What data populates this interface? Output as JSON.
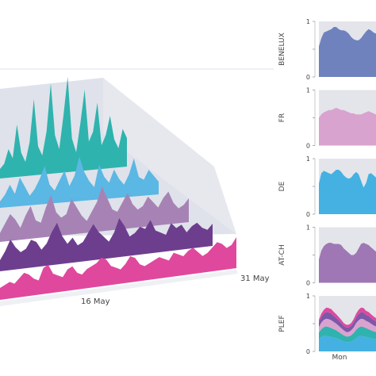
{
  "colors": {
    "BENELUX": "#6f82be",
    "FR": "#d9a3cf",
    "DE": "#45b1e2",
    "AT-CH": "#9e77b4",
    "PLEF": "#7d58a9",
    "series_3d": [
      "#e0489e",
      "#6d3e8e",
      "#a783b5",
      "#5bb7e4",
      "#2fb3ae"
    ]
  },
  "chart_data": [
    {
      "type": "area",
      "subtype": "3d-stacked-ridgeline",
      "title": "",
      "xlabel": "",
      "ylabel": "",
      "tick_labels": [
        "16 May",
        "31 May"
      ],
      "series": [
        {
          "values": [
            0.25,
            0.3,
            0.35,
            0.3,
            0.4,
            0.5,
            0.45,
            0.35,
            0.3,
            0.55,
            0.6,
            0.4,
            0.35,
            0.3,
            0.45,
            0.5,
            0.35,
            0.3,
            0.4,
            0.45,
            0.5,
            0.6,
            0.55,
            0.4,
            0.35,
            0.3,
            0.4,
            0.55,
            0.5,
            0.35,
            0.3,
            0.35,
            0.4,
            0.45,
            0.4,
            0.35,
            0.5,
            0.45,
            0.4,
            0.5,
            0.55,
            0.45,
            0.35,
            0.4,
            0.5,
            0.6,
            0.55,
            0.45,
            0.5,
            0.65
          ]
        },
        {
          "values": [
            0.2,
            0.35,
            0.55,
            0.4,
            0.3,
            0.35,
            0.5,
            0.45,
            0.3,
            0.4,
            0.6,
            0.75,
            0.5,
            0.35,
            0.45,
            0.3,
            0.35,
            0.5,
            0.65,
            0.5,
            0.4,
            0.3,
            0.45,
            0.7,
            0.55,
            0.35,
            0.4,
            0.5,
            0.45,
            0.6,
            0.4,
            0.35,
            0.3,
            0.5,
            0.4,
            0.45,
            0.3,
            0.4,
            0.45,
            0.35,
            0.3,
            0.4
          ]
        },
        {
          "values": [
            0.15,
            0.3,
            0.45,
            0.35,
            0.2,
            0.4,
            0.55,
            0.3,
            0.25,
            0.5,
            0.7,
            0.4,
            0.3,
            0.35,
            0.6,
            0.45,
            0.3,
            0.2,
            0.35,
            0.5,
            0.75,
            0.55,
            0.35,
            0.3,
            0.45,
            0.6,
            0.4,
            0.3,
            0.35,
            0.5,
            0.4,
            0.3,
            0.45,
            0.55,
            0.35,
            0.25,
            0.3,
            0.4
          ]
        },
        {
          "values": [
            0.1,
            0.2,
            0.35,
            0.2,
            0.45,
            0.3,
            0.15,
            0.25,
            0.4,
            0.6,
            0.3,
            0.2,
            0.35,
            0.5,
            0.25,
            0.4,
            0.7,
            0.45,
            0.3,
            0.2,
            0.55,
            0.35,
            0.25,
            0.45,
            0.3,
            0.2,
            0.35,
            0.6,
            0.3,
            0.25,
            0.4,
            0.3,
            0.2
          ]
        },
        {
          "values": [
            0.1,
            0.15,
            0.3,
            0.2,
            0.55,
            0.25,
            0.15,
            0.35,
            0.8,
            0.3,
            0.2,
            0.45,
            0.95,
            0.4,
            0.25,
            0.6,
            1.0,
            0.35,
            0.2,
            0.5,
            0.85,
            0.3,
            0.4,
            0.7,
            0.25,
            0.35,
            0.55,
            0.3,
            0.2,
            0.4,
            0.3
          ]
        }
      ]
    },
    {
      "type": "area",
      "title": "",
      "name": "BENELUX",
      "ylim": [
        0,
        1
      ],
      "yticks": [
        "1",
        "0.5",
        "0"
      ],
      "xlabel": "",
      "values": [
        0.55,
        0.7,
        0.8,
        0.82,
        0.84,
        0.86,
        0.9,
        0.9,
        0.86,
        0.84,
        0.84,
        0.82,
        0.78,
        0.72,
        0.68,
        0.66,
        0.66,
        0.7,
        0.76,
        0.82,
        0.86,
        0.84,
        0.8,
        0.78
      ]
    },
    {
      "type": "area",
      "title": "",
      "name": "FR",
      "ylim": [
        0,
        1
      ],
      "yticks": [
        "1",
        "0.5",
        "0"
      ],
      "xlabel": "",
      "values": [
        0.5,
        0.56,
        0.6,
        0.62,
        0.64,
        0.64,
        0.66,
        0.68,
        0.66,
        0.64,
        0.64,
        0.62,
        0.6,
        0.58,
        0.58,
        0.56,
        0.56,
        0.56,
        0.58,
        0.6,
        0.62,
        0.6,
        0.58,
        0.56
      ]
    },
    {
      "type": "area",
      "title": "",
      "name": "DE",
      "ylim": [
        0,
        1
      ],
      "yticks": [
        "1",
        "0.5",
        "0"
      ],
      "xlabel": "",
      "values": [
        0.55,
        0.74,
        0.78,
        0.76,
        0.74,
        0.72,
        0.76,
        0.8,
        0.8,
        0.76,
        0.7,
        0.66,
        0.64,
        0.66,
        0.72,
        0.76,
        0.72,
        0.6,
        0.48,
        0.56,
        0.72,
        0.74,
        0.7,
        0.66
      ]
    },
    {
      "type": "area",
      "title": "",
      "name": "AT-CH",
      "ylim": [
        0,
        1
      ],
      "yticks": [
        "1",
        "0.5",
        "0"
      ],
      "xlabel": "",
      "values": [
        0.42,
        0.58,
        0.66,
        0.7,
        0.72,
        0.72,
        0.7,
        0.7,
        0.7,
        0.68,
        0.62,
        0.58,
        0.54,
        0.5,
        0.5,
        0.54,
        0.62,
        0.7,
        0.72,
        0.7,
        0.68,
        0.64,
        0.6,
        0.56
      ]
    },
    {
      "type": "area",
      "subtype": "stacked",
      "title": "",
      "name": "PLEF",
      "ylim": [
        0,
        1
      ],
      "yticks": [
        "1",
        "0.5",
        "0"
      ],
      "xlabel": "Mon",
      "series": [
        {
          "values": [
            0.22,
            0.26,
            0.28,
            0.28,
            0.27,
            0.26,
            0.25,
            0.24,
            0.22,
            0.2,
            0.18,
            0.17,
            0.17,
            0.18,
            0.2,
            0.24,
            0.27,
            0.28,
            0.27,
            0.26,
            0.25,
            0.24,
            0.23,
            0.22
          ]
        },
        {
          "values": [
            0.12,
            0.14,
            0.16,
            0.17,
            0.17,
            0.16,
            0.15,
            0.14,
            0.13,
            0.12,
            0.11,
            0.1,
            0.1,
            0.11,
            0.13,
            0.15,
            0.16,
            0.17,
            0.17,
            0.16,
            0.15,
            0.14,
            0.13,
            0.13
          ]
        },
        {
          "values": [
            0.1,
            0.12,
            0.13,
            0.14,
            0.14,
            0.14,
            0.13,
            0.12,
            0.11,
            0.1,
            0.09,
            0.08,
            0.08,
            0.09,
            0.1,
            0.12,
            0.13,
            0.14,
            0.14,
            0.13,
            0.13,
            0.12,
            0.11,
            0.1
          ]
        },
        {
          "values": [
            0.08,
            0.1,
            0.11,
            0.12,
            0.12,
            0.12,
            0.11,
            0.1,
            0.1,
            0.09,
            0.08,
            0.08,
            0.08,
            0.08,
            0.09,
            0.1,
            0.11,
            0.12,
            0.12,
            0.11,
            0.11,
            0.1,
            0.1,
            0.09
          ]
        },
        {
          "values": [
            0.05,
            0.06,
            0.07,
            0.08,
            0.08,
            0.08,
            0.07,
            0.07,
            0.06,
            0.06,
            0.05,
            0.05,
            0.05,
            0.05,
            0.06,
            0.07,
            0.08,
            0.08,
            0.08,
            0.07,
            0.07,
            0.07,
            0.06,
            0.06
          ]
        }
      ],
      "series_colors": [
        "#45b1e2",
        "#2fb3ae",
        "#d9a3cf",
        "#7d58a9",
        "#e0489e"
      ]
    }
  ]
}
